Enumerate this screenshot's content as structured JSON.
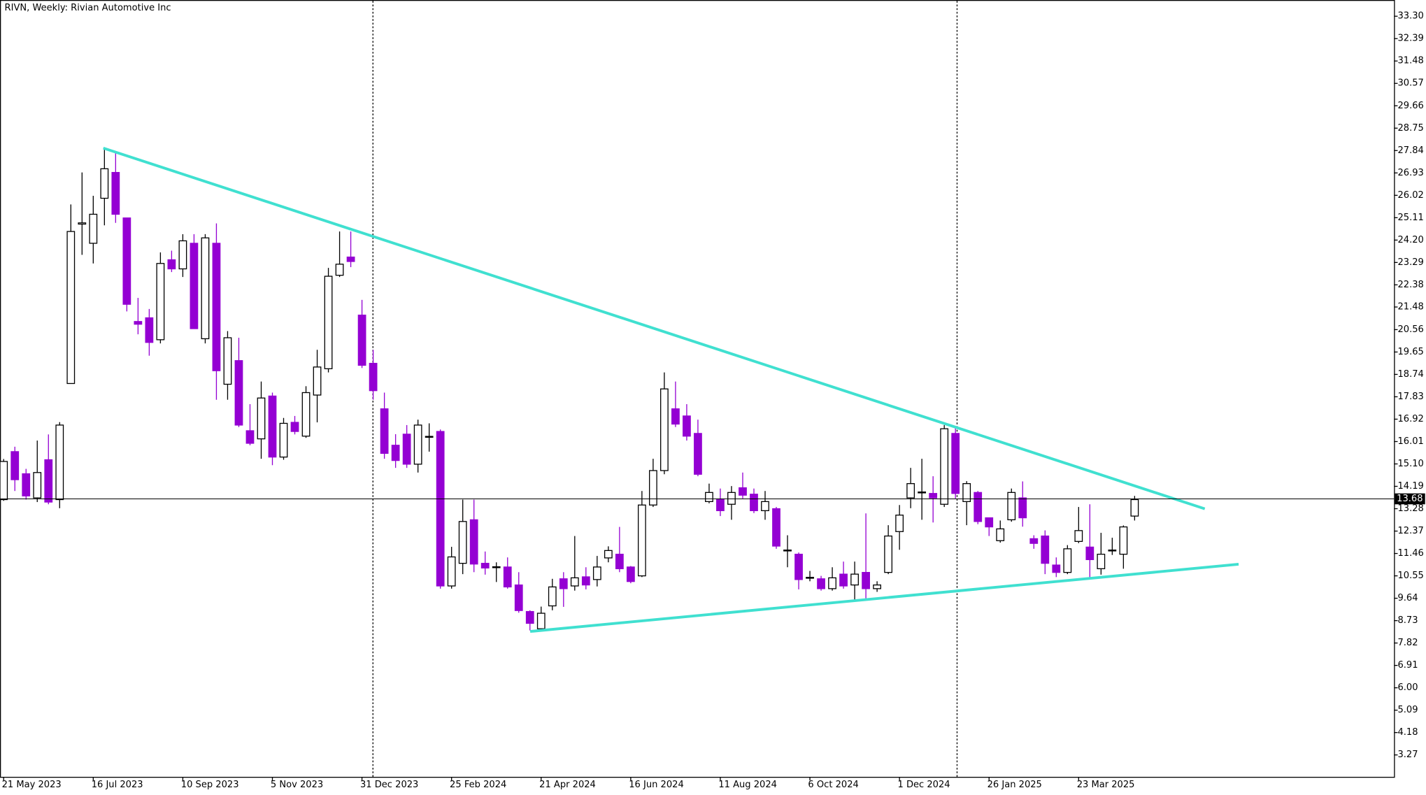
{
  "chart_data": {
    "type": "candlestick",
    "title": "RIVN, Weekly:  Rivian Automotive Inc",
    "categories": [
      "21 May 2023",
      null,
      null,
      null,
      null,
      null,
      null,
      null,
      "16 Jul 2023",
      null,
      null,
      null,
      null,
      null,
      null,
      null,
      "10 Sep 2023",
      null,
      null,
      null,
      null,
      null,
      null,
      null,
      "5 Nov 2023",
      null,
      null,
      null,
      null,
      null,
      null,
      null,
      "31 Dec 2023",
      null,
      null,
      null,
      null,
      null,
      null,
      null,
      "25 Feb 2024",
      null,
      null,
      null,
      null,
      null,
      null,
      null,
      "21 Apr 2024",
      null,
      null,
      null,
      null,
      null,
      null,
      null,
      "16 Jun 2024",
      null,
      null,
      null,
      null,
      null,
      null,
      null,
      "11 Aug 2024",
      null,
      null,
      null,
      null,
      null,
      null,
      null,
      "6 Oct 2024",
      null,
      null,
      null,
      null,
      null,
      null,
      null,
      "1 Dec 2024",
      null,
      null,
      null,
      null,
      null,
      null,
      null,
      "26 Jan 2025",
      null,
      null,
      null,
      null,
      null,
      null,
      null,
      "23 Mar 2025",
      null,
      null,
      null,
      null,
      null
    ],
    "open": [
      13.65,
      15.6,
      14.7,
      13.72,
      15.27,
      13.65,
      18.37,
      24.85,
      24.07,
      25.9,
      26.95,
      25.1,
      20.89,
      21.04,
      20.15,
      23.4,
      23.03,
      24.07,
      20.19,
      24.07,
      18.34,
      19.3,
      16.45,
      16.12,
      17.86,
      15.38,
      16.79,
      16.23,
      17.9,
      18.97,
      22.77,
      23.51,
      21.15,
      19.19,
      17.34,
      15.86,
      16.31,
      15.09,
      16.2,
      16.42,
      10.14,
      11.06,
      12.83,
      11.06,
      10.9,
      10.91,
      10.18,
      9.1,
      8.4,
      9.33,
      10.43,
      10.14,
      10.51,
      10.4,
      11.28,
      11.43,
      10.91,
      10.55,
      13.43,
      14.83,
      17.34,
      17.05,
      16.34,
      13.57,
      13.65,
      13.46,
      14.13,
      13.87,
      13.2,
      13.28,
      11.58,
      11.43,
      10.47,
      10.43,
      10.03,
      10.62,
      10.18,
      10.69,
      10.03,
      10.69,
      12.35,
      13.72,
      13.94,
      13.9,
      13.46,
      16.34,
      13.57,
      13.94,
      12.91,
      11.98,
      12.83,
      13.72,
      12.06,
      12.17,
      10.99,
      10.69,
      11.95,
      11.72,
      10.84,
      11.58,
      11.43,
      12.98
    ],
    "high": [
      15.3,
      15.8,
      14.9,
      16.05,
      16.3,
      16.8,
      25.65,
      26.95,
      26.0,
      27.87,
      27.76,
      25.1,
      21.85,
      21.4,
      23.7,
      23.77,
      24.44,
      24.44,
      24.44,
      24.88,
      20.5,
      20.23,
      17.53,
      18.45,
      18.0,
      16.97,
      17.05,
      18.26,
      19.74,
      23.07,
      24.55,
      24.55,
      21.77,
      19.74,
      18.0,
      16.31,
      16.68,
      16.9,
      16.75,
      16.5,
      11.73,
      13.65,
      13.65,
      11.54,
      11.1,
      11.3,
      10.7,
      9.15,
      9.3,
      10.43,
      10.7,
      12.17,
      10.9,
      11.36,
      11.75,
      12.54,
      10.95,
      14.0,
      15.31,
      18.82,
      18.45,
      17.53,
      16.9,
      14.3,
      14.1,
      14.2,
      14.75,
      14.1,
      14.0,
      13.35,
      12.2,
      11.5,
      10.75,
      10.55,
      10.9,
      11.13,
      11.13,
      13.09,
      10.33,
      12.61,
      13.43,
      14.94,
      15.31,
      14.6,
      16.68,
      16.6,
      14.4,
      14.0,
      12.92,
      12.8,
      14.1,
      14.39,
      12.2,
      12.4,
      11.3,
      11.8,
      13.35,
      13.46,
      12.3,
      12.1,
      12.6,
      13.8
    ],
    "low": [
      13.6,
      14.0,
      13.65,
      13.55,
      13.46,
      13.3,
      18.37,
      23.6,
      23.25,
      24.8,
      24.9,
      21.3,
      20.37,
      19.5,
      20.0,
      22.9,
      22.7,
      20.6,
      20.0,
      17.71,
      17.71,
      16.6,
      15.86,
      15.31,
      15.05,
      15.27,
      16.3,
      16.16,
      16.79,
      18.82,
      22.7,
      23.1,
      19.0,
      17.71,
      15.31,
      14.94,
      14.94,
      14.75,
      15.6,
      10.03,
      10.03,
      10.62,
      10.7,
      10.6,
      10.3,
      10.03,
      9.05,
      8.33,
      8.33,
      9.15,
      9.29,
      9.95,
      10.0,
      10.12,
      11.1,
      10.7,
      10.25,
      10.5,
      13.35,
      14.68,
      16.6,
      16.05,
      14.6,
      13.5,
      12.98,
      12.83,
      13.7,
      13.1,
      12.83,
      11.65,
      10.9,
      10.0,
      10.33,
      9.95,
      9.95,
      10.03,
      9.58,
      9.58,
      9.9,
      10.62,
      11.61,
      13.3,
      12.83,
      12.72,
      13.35,
      13.7,
      12.61,
      12.65,
      12.17,
      11.9,
      12.75,
      12.55,
      11.65,
      10.62,
      10.5,
      10.62,
      11.88,
      10.4,
      10.6,
      11.4,
      10.84,
      12.8
    ],
    "close": [
      15.2,
      14.46,
      13.8,
      14.75,
      13.55,
      16.68,
      24.55,
      24.9,
      25.25,
      27.1,
      25.25,
      21.59,
      20.78,
      20.04,
      23.25,
      23.03,
      24.17,
      20.6,
      24.29,
      18.89,
      20.23,
      16.68,
      15.94,
      17.78,
      15.38,
      16.75,
      16.42,
      18.0,
      19.04,
      22.73,
      23.22,
      23.33,
      19.11,
      18.08,
      15.53,
      15.24,
      15.09,
      16.68,
      16.22,
      10.14,
      11.32,
      12.76,
      11.03,
      10.87,
      10.92,
      10.1,
      9.14,
      8.62,
      9.03,
      10.1,
      10.03,
      10.47,
      10.18,
      10.91,
      11.58,
      10.84,
      10.32,
      13.43,
      14.83,
      18.15,
      16.72,
      16.23,
      14.68,
      13.94,
      13.2,
      13.94,
      13.83,
      13.2,
      13.57,
      11.76,
      11.6,
      10.4,
      10.49,
      10.03,
      10.47,
      10.14,
      10.62,
      10.03,
      10.18,
      12.17,
      13.02,
      14.3,
      13.96,
      13.72,
      16.53,
      13.9,
      14.3,
      12.76,
      12.54,
      12.46,
      13.94,
      12.91,
      11.87,
      11.06,
      10.69,
      11.65,
      12.39,
      11.21,
      11.43,
      11.6,
      12.54,
      13.65
    ],
    "up_color": "#ffffff",
    "down_color": "#9400d3",
    "last_price": 13.68,
    "ylim": [
      2.38,
      33.96
    ],
    "yticks": [
      3.27,
      4.18,
      5.09,
      {
        "value": 6,
        "label": "6.00"
      },
      6.91,
      7.82,
      8.73,
      9.64,
      10.55,
      11.46,
      12.37,
      13.28,
      14.19,
      {
        "value": 15.1,
        "label": "15.10"
      },
      16.01,
      16.92,
      17.83,
      18.74,
      19.65,
      20.56,
      21.48,
      22.38,
      23.29,
      {
        "value": 24.2,
        "label": "24.20"
      },
      25.11,
      26.02,
      26.93,
      27.84,
      28.75,
      29.66,
      30.57,
      31.48,
      32.39,
      {
        "value": 33.3,
        "label": "33.30"
      }
    ]
  }
}
